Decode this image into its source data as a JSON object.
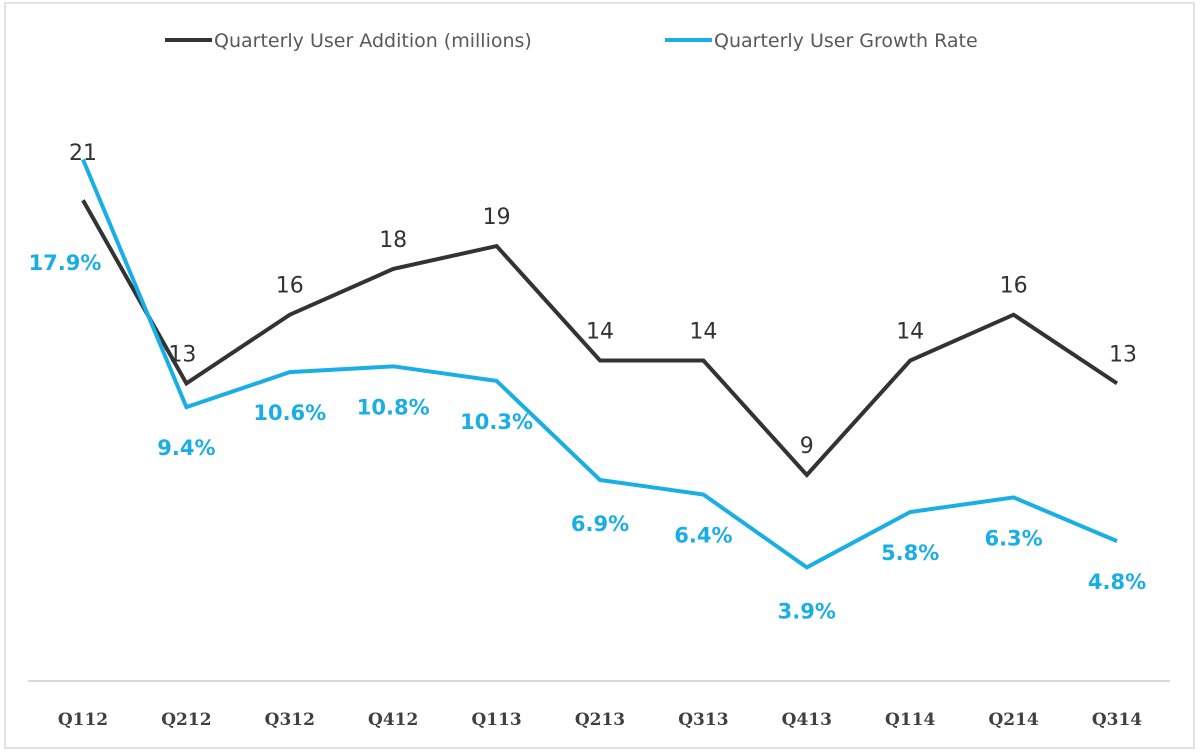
{
  "chart_data": {
    "type": "line",
    "title": "",
    "xlabel": "",
    "ylabel": "",
    "categories": [
      "Q112",
      "Q212",
      "Q312",
      "Q412",
      "Q113",
      "Q213",
      "Q313",
      "Q413",
      "Q114",
      "Q214",
      "Q314"
    ],
    "series": [
      {
        "name": "Quarterly User Addition (millions)",
        "color": "#333333",
        "values": [
          21,
          13,
          16,
          18,
          19,
          14,
          14,
          9,
          14,
          16,
          13
        ],
        "labels": [
          "21",
          "13",
          "16",
          "18",
          "19",
          "14",
          "14",
          "9",
          "14",
          "16",
          "13"
        ],
        "axis": "primary",
        "ylim": [
          0,
          28
        ]
      },
      {
        "name": "Quarterly User Growth Rate",
        "color": "#1aaee6",
        "values": [
          17.9,
          9.4,
          10.6,
          10.8,
          10.3,
          6.9,
          6.4,
          3.9,
          5.8,
          6.3,
          4.8
        ],
        "labels": [
          "17.9%",
          "9.4%",
          "10.6%",
          "10.8%",
          "10.3%",
          "6.9%",
          "6.4%",
          "3.9%",
          "5.8%",
          "6.3%",
          "4.8%"
        ],
        "axis": "secondary",
        "ylim": [
          0,
          22
        ]
      }
    ],
    "grid": false,
    "legend": "top-center"
  }
}
